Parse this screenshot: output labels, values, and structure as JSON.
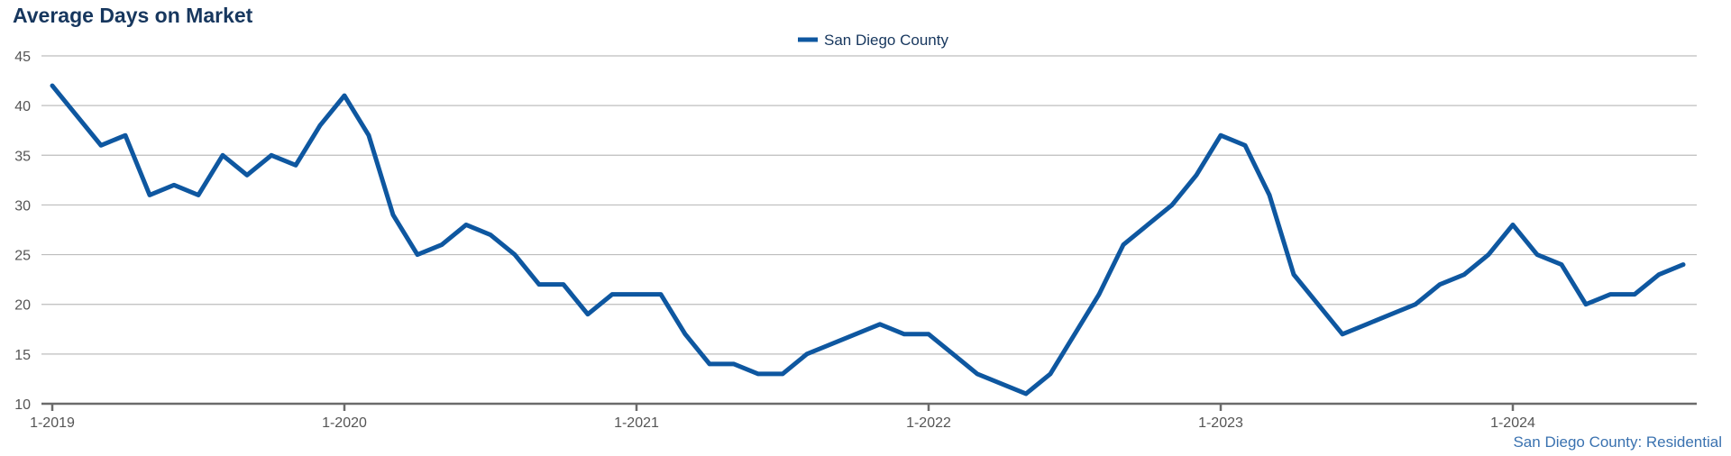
{
  "chart_data": {
    "type": "line",
    "title": "Average Days on Market",
    "footer": "San Diego County: Residential",
    "xlabel": "",
    "ylabel": "",
    "ylim": [
      10,
      45
    ],
    "y_ticks": [
      10,
      15,
      20,
      25,
      30,
      35,
      40,
      45
    ],
    "x_ticks": [
      {
        "label": "1-2019",
        "index": 0
      },
      {
        "label": "1-2020",
        "index": 12
      },
      {
        "label": "1-2021",
        "index": 24
      },
      {
        "label": "1-2022",
        "index": 36
      },
      {
        "label": "1-2023",
        "index": 48
      },
      {
        "label": "1-2024",
        "index": 60
      }
    ],
    "legend_position": "top-center",
    "grid": true,
    "series": [
      {
        "name": "San Diego County",
        "color": "#0e57a0",
        "values": [
          42,
          39,
          36,
          37,
          31,
          32,
          31,
          35,
          33,
          35,
          34,
          38,
          41,
          37,
          29,
          25,
          26,
          28,
          27,
          25,
          22,
          22,
          19,
          21,
          21,
          21,
          17,
          14,
          14,
          13,
          13,
          15,
          16,
          17,
          18,
          17,
          17,
          15,
          13,
          12,
          11,
          13,
          17,
          21,
          26,
          28,
          30,
          33,
          37,
          36,
          31,
          23,
          20,
          17,
          18,
          19,
          20,
          22,
          23,
          25,
          28,
          25,
          24,
          20,
          21,
          21,
          23,
          24
        ]
      }
    ]
  }
}
